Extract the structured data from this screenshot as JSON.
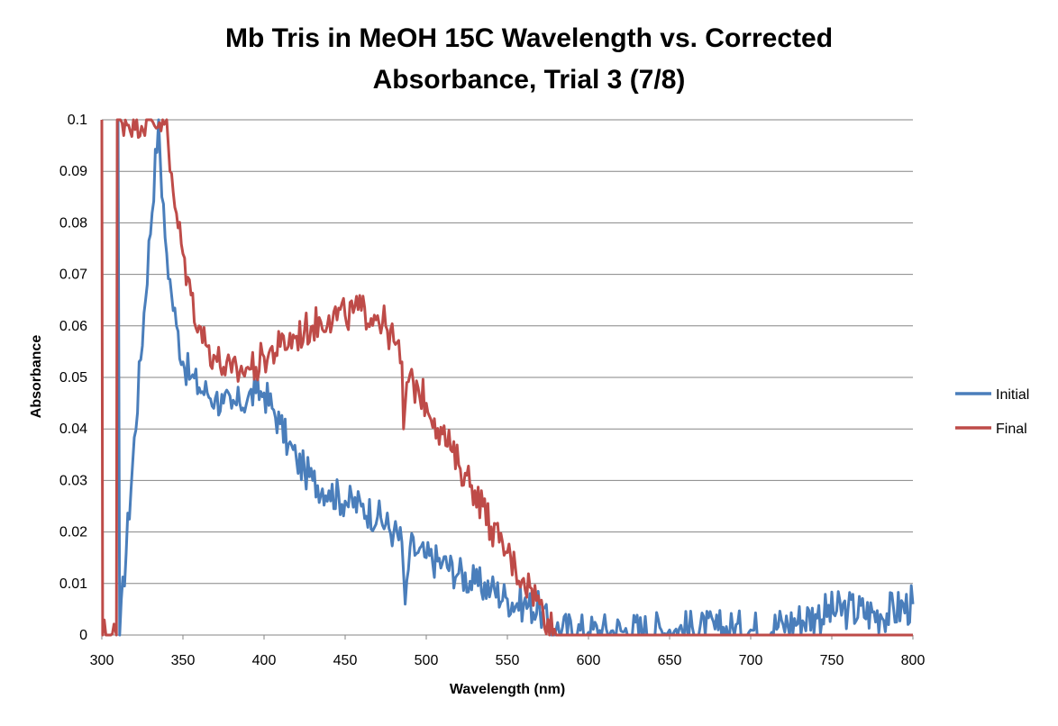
{
  "chart_data": {
    "type": "line",
    "title": "Mb Tris in MeOH 15C Wavelength vs. Corrected Absorbance, Trial 3 (7/8)",
    "title_lines": [
      "Mb Tris in MeOH 15C Wavelength vs. Corrected",
      "Absorbance, Trial 3 (7/8)"
    ],
    "xlabel": "Wavelength (nm)",
    "ylabel": "Absorbance",
    "xlim": [
      300,
      800
    ],
    "ylim": [
      0,
      0.1
    ],
    "x_ticks": [
      "300",
      "350",
      "400",
      "450",
      "500",
      "550",
      "600",
      "650",
      "700",
      "750",
      "800"
    ],
    "y_ticks": [
      "0",
      "0.01",
      "0.02",
      "0.03",
      "0.04",
      "0.05",
      "0.06",
      "0.07",
      "0.08",
      "0.09",
      "0.1"
    ],
    "grid": "horizontal",
    "legend_position": "right",
    "series": [
      {
        "name": "Initial",
        "color": "#4a7ebb",
        "points": [
          [
            310,
            0.1
          ],
          [
            311,
            0.0
          ],
          [
            335,
            0.1
          ],
          [
            337,
            0.085
          ],
          [
            340,
            0.074
          ],
          [
            343,
            0.066
          ],
          [
            346,
            0.06
          ],
          [
            350,
            0.053
          ],
          [
            355,
            0.05
          ],
          [
            360,
            0.048
          ],
          [
            365,
            0.047
          ],
          [
            370,
            0.046
          ],
          [
            375,
            0.045
          ],
          [
            380,
            0.044
          ],
          [
            385,
            0.045
          ],
          [
            390,
            0.046
          ],
          [
            395,
            0.047
          ],
          [
            400,
            0.047
          ],
          [
            405,
            0.044
          ],
          [
            410,
            0.041
          ],
          [
            415,
            0.037
          ],
          [
            420,
            0.034
          ],
          [
            425,
            0.032
          ],
          [
            430,
            0.03
          ],
          [
            440,
            0.028
          ],
          [
            450,
            0.026
          ],
          [
            460,
            0.025
          ],
          [
            470,
            0.023
          ],
          [
            480,
            0.02
          ],
          [
            485,
            0.018
          ],
          [
            487,
            0.006
          ],
          [
            490,
            0.017
          ],
          [
            495,
            0.016
          ],
          [
            500,
            0.015
          ],
          [
            510,
            0.014
          ],
          [
            520,
            0.012
          ],
          [
            530,
            0.01
          ],
          [
            540,
            0.009
          ],
          [
            550,
            0.007
          ],
          [
            560,
            0.006
          ],
          [
            570,
            0.005
          ],
          [
            575,
            0.002
          ],
          [
            580,
            0.001
          ],
          [
            600,
            0.0005
          ],
          [
            620,
            0.0008
          ],
          [
            650,
            0.001
          ],
          [
            680,
            0.001
          ],
          [
            700,
            0.001
          ],
          [
            720,
            0.002
          ],
          [
            740,
            0.004
          ],
          [
            760,
            0.005
          ],
          [
            780,
            0.004
          ],
          [
            800,
            0.006
          ]
        ]
      },
      {
        "name": "Final",
        "color": "#be4b48",
        "points": [
          [
            300,
            0.1
          ],
          [
            300.5,
            0.0
          ],
          [
            309,
            0.0
          ],
          [
            309.5,
            0.1
          ],
          [
            340,
            0.1
          ],
          [
            342,
            0.09
          ],
          [
            345,
            0.083
          ],
          [
            350,
            0.074
          ],
          [
            355,
            0.066
          ],
          [
            360,
            0.06
          ],
          [
            365,
            0.056
          ],
          [
            370,
            0.054
          ],
          [
            375,
            0.052
          ],
          [
            380,
            0.051
          ],
          [
            385,
            0.051
          ],
          [
            390,
            0.052
          ],
          [
            395,
            0.052
          ],
          [
            400,
            0.054
          ],
          [
            410,
            0.056
          ],
          [
            420,
            0.058
          ],
          [
            430,
            0.06
          ],
          [
            440,
            0.062
          ],
          [
            450,
            0.062
          ],
          [
            460,
            0.063
          ],
          [
            470,
            0.062
          ],
          [
            475,
            0.06
          ],
          [
            480,
            0.057
          ],
          [
            485,
            0.053
          ],
          [
            486,
            0.04
          ],
          [
            488,
            0.049
          ],
          [
            495,
            0.048
          ],
          [
            500,
            0.045
          ],
          [
            505,
            0.042
          ],
          [
            510,
            0.039
          ],
          [
            515,
            0.036
          ],
          [
            520,
            0.033
          ],
          [
            525,
            0.031
          ],
          [
            530,
            0.028
          ],
          [
            535,
            0.025
          ],
          [
            540,
            0.021
          ],
          [
            545,
            0.018
          ],
          [
            550,
            0.016
          ],
          [
            555,
            0.013
          ],
          [
            560,
            0.011
          ],
          [
            565,
            0.009
          ],
          [
            570,
            0.006
          ],
          [
            575,
            0.003
          ],
          [
            580,
            0.0
          ],
          [
            800,
            0.0
          ]
        ]
      }
    ]
  }
}
